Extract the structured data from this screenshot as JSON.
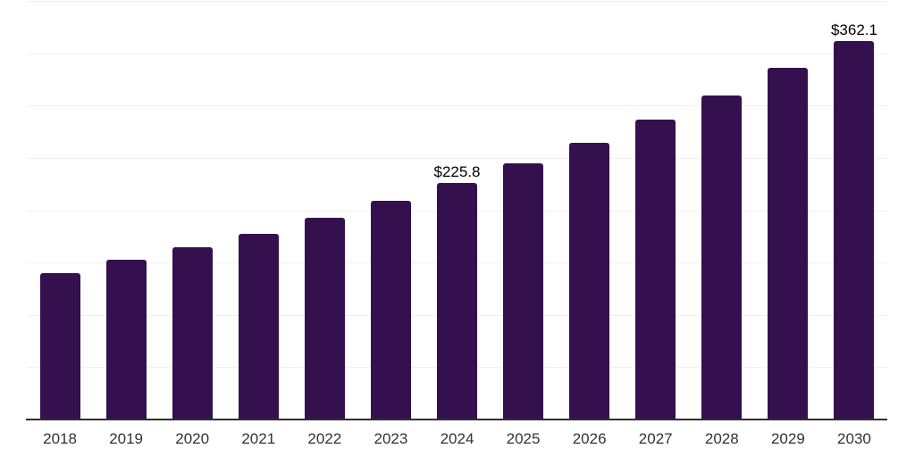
{
  "chart_data": {
    "type": "bar",
    "title": "",
    "xlabel": "",
    "ylabel": "",
    "categories": [
      "2018",
      "2019",
      "2020",
      "2021",
      "2022",
      "2023",
      "2024",
      "2025",
      "2026",
      "2027",
      "2028",
      "2029",
      "2030"
    ],
    "values": [
      139.9,
      152.6,
      164.7,
      177.5,
      192.8,
      209.0,
      225.8,
      244.9,
      264.5,
      286.7,
      309.7,
      336.2,
      362.1
    ],
    "data_labels": [
      {
        "category": "2024",
        "text": "$225.8"
      },
      {
        "category": "2030",
        "text": "$362.1"
      }
    ],
    "value_prefix": "$",
    "ylim": [
      0,
      400
    ],
    "gridline_step": 50,
    "grid": true,
    "y_tick_labels_visible": false,
    "legend": "none",
    "colors": {
      "bar": "#35104e",
      "axis_line": "#2f2f2f",
      "gridline": "#f0f0f0",
      "tick_label": "#333333",
      "data_label": "#000000",
      "background": "#ffffff"
    }
  }
}
